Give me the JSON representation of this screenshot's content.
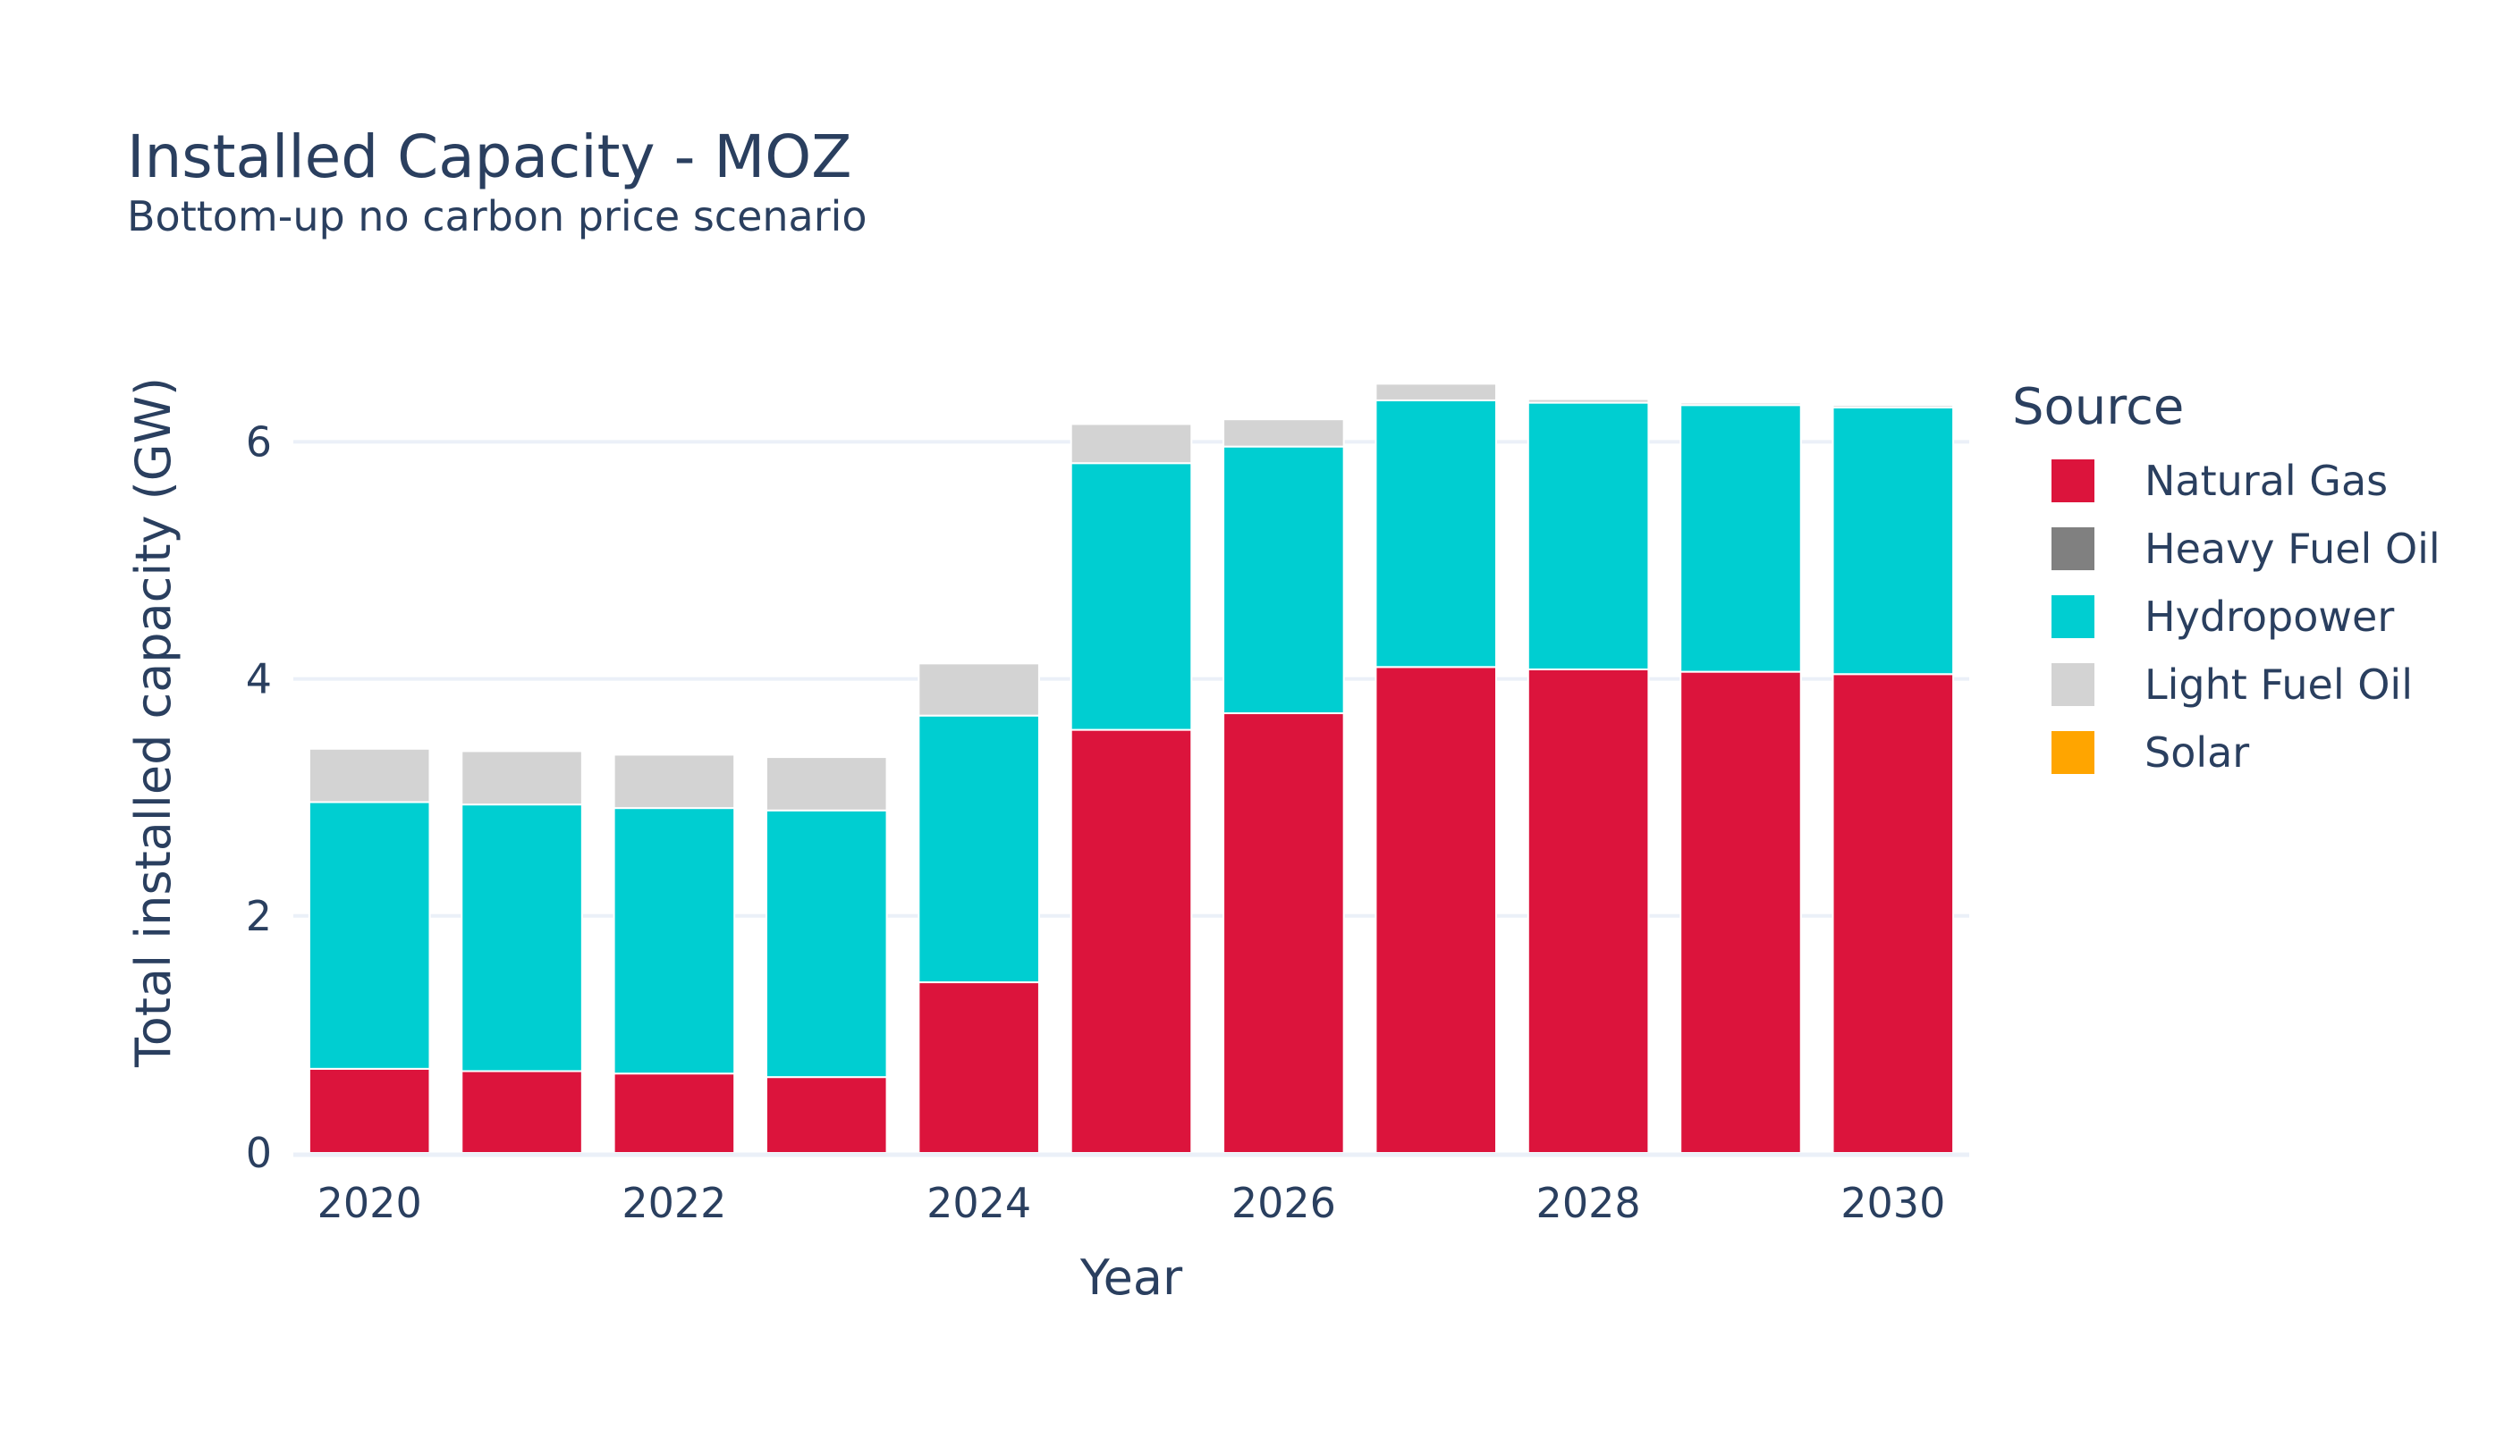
{
  "chart_data": {
    "type": "bar",
    "stacked": true,
    "title": "Installed Capacity - MOZ",
    "subtitle": "Bottom-up no carbon price scenario",
    "xlabel": "Year",
    "ylabel": "Total installed capacity (GW)",
    "x": [
      2020,
      2021,
      2022,
      2023,
      2024,
      2025,
      2026,
      2027,
      2028,
      2029,
      2030
    ],
    "xticks": [
      "2020",
      "2022",
      "2024",
      "2026",
      "2028",
      "2030"
    ],
    "yticks": [
      "0",
      "2",
      "4",
      "6"
    ],
    "ylim": [
      0,
      6.9
    ],
    "grid": true,
    "legend_title": "Source",
    "legend_position": "right",
    "series": [
      {
        "name": "Natural Gas",
        "color": "#DC143C",
        "values": [
          0.71,
          0.69,
          0.67,
          0.64,
          1.44,
          3.57,
          3.71,
          4.1,
          4.08,
          4.06,
          4.04
        ]
      },
      {
        "name": "Heavy Fuel Oil",
        "color": "#808080",
        "values": [
          0,
          0,
          0,
          0,
          0,
          0,
          0,
          0,
          0,
          0,
          0
        ]
      },
      {
        "name": "Hydropower",
        "color": "#00CED1",
        "values": [
          2.25,
          2.25,
          2.24,
          2.25,
          2.25,
          2.25,
          2.25,
          2.25,
          2.25,
          2.25,
          2.25
        ]
      },
      {
        "name": "Light Fuel Oil",
        "color": "#D3D3D3",
        "values": [
          0.45,
          0.45,
          0.45,
          0.45,
          0.44,
          0.33,
          0.23,
          0.14,
          0.03,
          0.02,
          0.02
        ]
      },
      {
        "name": "Solar",
        "color": "#FFA500",
        "values": [
          0,
          0,
          0,
          0,
          0,
          0,
          0,
          0,
          0,
          0,
          0
        ]
      }
    ]
  }
}
